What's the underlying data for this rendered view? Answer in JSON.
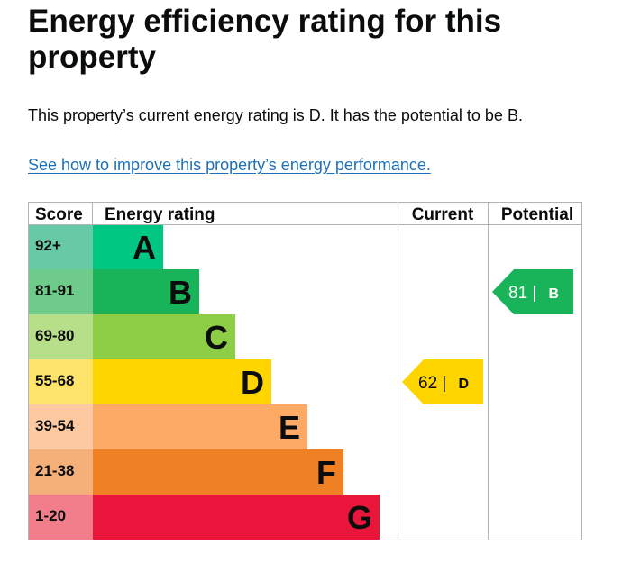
{
  "page": {
    "title": "Energy efficiency rating for this property",
    "summary": "This property’s current energy rating is D. It has the potential to be B.",
    "improve_link": "See how to improve this property’s energy performance."
  },
  "table": {
    "headers": {
      "score": "Score",
      "rating": "Energy rating",
      "current": "Current",
      "potential": "Potential"
    },
    "bands": [
      {
        "score": "92+",
        "letter": "A",
        "color": "#00c781",
        "score_bg": "#67c9a6"
      },
      {
        "score": "81-91",
        "letter": "B",
        "color": "#19b459",
        "score_bg": "#6fcb8a"
      },
      {
        "score": "69-80",
        "letter": "C",
        "color": "#8dce46",
        "score_bg": "#b7df8a"
      },
      {
        "score": "55-68",
        "letter": "D",
        "color": "#ffd500",
        "score_bg": "#ffe46b"
      },
      {
        "score": "39-54",
        "letter": "E",
        "color": "#fcaa65",
        "score_bg": "#fdc9a0"
      },
      {
        "score": "21-38",
        "letter": "F",
        "color": "#ef8023",
        "score_bg": "#f5b07a"
      },
      {
        "score": "1-20",
        "letter": "G",
        "color": "#e9153b",
        "score_bg": "#f27d8b"
      }
    ],
    "current": {
      "value": "62",
      "separator": "|",
      "letter": "D",
      "band_index": 3,
      "color": "#ffd500",
      "text_color": "#0b0c0c"
    },
    "potential": {
      "value": "81",
      "separator": "|",
      "letter": "B",
      "band_index": 1,
      "color": "#19b459",
      "text_color": "#ffffff"
    }
  }
}
